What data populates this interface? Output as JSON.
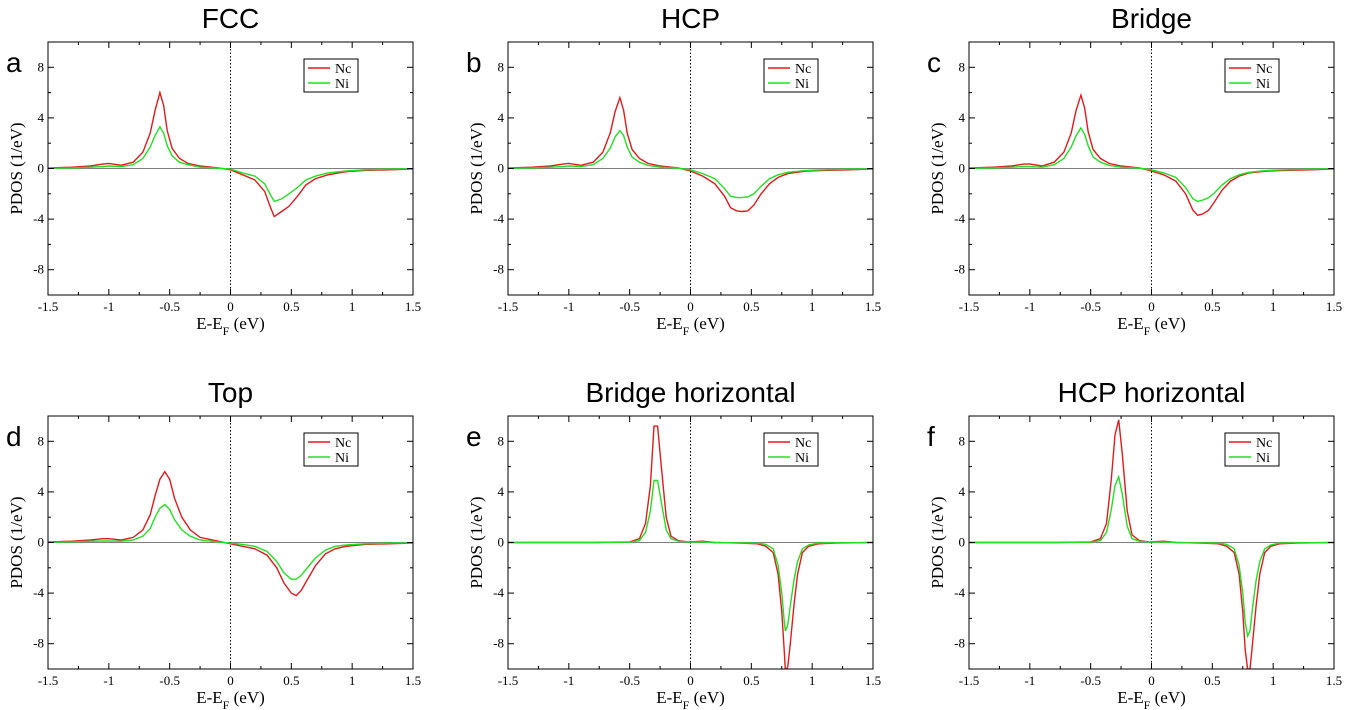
{
  "chart_data": [
    {
      "panel": "a",
      "type": "line",
      "title": "FCC",
      "xlabel": "E-E_F (eV)",
      "ylabel": "PDOS (1/eV)",
      "xlim": [
        -1.5,
        1.5
      ],
      "ylim": [
        -10,
        10
      ],
      "xticks": [
        "-1.5",
        "-1",
        "-0.5",
        "0",
        "0.5",
        "1",
        "1.5"
      ],
      "yticks": [
        "-8",
        "-4",
        "0",
        "4",
        "8"
      ],
      "legend": [
        "Nc",
        "Ni"
      ],
      "legend_position": "top-right",
      "series": [
        {
          "name": "Nc",
          "color": "#e31a1c",
          "x": [
            -1.5,
            -1.3,
            -1.15,
            -1.05,
            -1.0,
            -0.9,
            -0.8,
            -0.72,
            -0.66,
            -0.62,
            -0.58,
            -0.55,
            -0.52,
            -0.48,
            -0.42,
            -0.35,
            -0.25,
            -0.1,
            0.0,
            0.05,
            0.1,
            0.2,
            0.28,
            0.33,
            0.36,
            0.42,
            0.48,
            0.55,
            0.62,
            0.7,
            0.8,
            0.95,
            1.1,
            1.3,
            1.5
          ],
          "y": [
            0.05,
            0.1,
            0.2,
            0.35,
            0.4,
            0.25,
            0.5,
            1.3,
            2.8,
            4.6,
            6.0,
            5.0,
            3.0,
            1.6,
            0.8,
            0.4,
            0.2,
            0.05,
            -0.1,
            -0.3,
            -0.5,
            -0.9,
            -1.8,
            -3.1,
            -3.8,
            -3.4,
            -3.0,
            -2.2,
            -1.3,
            -0.8,
            -0.5,
            -0.25,
            -0.15,
            -0.1,
            -0.05
          ]
        },
        {
          "name": "Ni",
          "color": "#22e022",
          "x": [
            -1.5,
            -1.3,
            -1.15,
            -1.05,
            -1.0,
            -0.9,
            -0.8,
            -0.72,
            -0.66,
            -0.62,
            -0.58,
            -0.55,
            -0.52,
            -0.48,
            -0.42,
            -0.35,
            -0.25,
            -0.1,
            0.0,
            0.05,
            0.1,
            0.2,
            0.28,
            0.33,
            0.36,
            0.42,
            0.48,
            0.55,
            0.62,
            0.7,
            0.8,
            0.95,
            1.1,
            1.3,
            1.5
          ],
          "y": [
            0.02,
            0.05,
            0.1,
            0.15,
            0.2,
            0.15,
            0.3,
            0.8,
            1.7,
            2.6,
            3.3,
            2.8,
            1.8,
            1.0,
            0.5,
            0.3,
            0.1,
            0.02,
            -0.05,
            -0.2,
            -0.35,
            -0.6,
            -1.2,
            -2.1,
            -2.6,
            -2.4,
            -2.0,
            -1.5,
            -0.9,
            -0.6,
            -0.35,
            -0.2,
            -0.1,
            -0.05,
            -0.02
          ]
        }
      ]
    },
    {
      "panel": "b",
      "type": "line",
      "title": "HCP",
      "xlabel": "E-E_F (eV)",
      "ylabel": "PDOS (1/eV)",
      "xlim": [
        -1.5,
        1.5
      ],
      "ylim": [
        -10,
        10
      ],
      "xticks": [
        "-1.5",
        "-1",
        "-0.5",
        "0",
        "0.5",
        "1",
        "1.5"
      ],
      "yticks": [
        "-8",
        "-4",
        "0",
        "4",
        "8"
      ],
      "legend": [
        "Nc",
        "Ni"
      ],
      "legend_position": "top-right",
      "series": [
        {
          "name": "Nc",
          "color": "#e31a1c",
          "x": [
            -1.5,
            -1.3,
            -1.15,
            -1.05,
            -1.0,
            -0.9,
            -0.8,
            -0.72,
            -0.66,
            -0.62,
            -0.58,
            -0.55,
            -0.52,
            -0.48,
            -0.42,
            -0.35,
            -0.25,
            -0.1,
            0.0,
            0.1,
            0.2,
            0.28,
            0.33,
            0.38,
            0.42,
            0.47,
            0.52,
            0.58,
            0.65,
            0.72,
            0.8,
            0.95,
            1.1,
            1.3,
            1.5
          ],
          "y": [
            0.05,
            0.1,
            0.2,
            0.35,
            0.4,
            0.25,
            0.5,
            1.3,
            2.8,
            4.5,
            5.6,
            4.6,
            2.8,
            1.5,
            0.8,
            0.4,
            0.2,
            0.05,
            -0.2,
            -0.6,
            -1.2,
            -2.2,
            -3.1,
            -3.35,
            -3.4,
            -3.35,
            -2.9,
            -2.0,
            -1.2,
            -0.7,
            -0.4,
            -0.2,
            -0.15,
            -0.1,
            -0.05
          ]
        },
        {
          "name": "Ni",
          "color": "#22e022",
          "x": [
            -1.5,
            -1.3,
            -1.15,
            -1.05,
            -1.0,
            -0.9,
            -0.8,
            -0.72,
            -0.66,
            -0.62,
            -0.58,
            -0.55,
            -0.52,
            -0.48,
            -0.42,
            -0.35,
            -0.25,
            -0.1,
            0.0,
            0.1,
            0.2,
            0.28,
            0.33,
            0.38,
            0.42,
            0.47,
            0.52,
            0.58,
            0.65,
            0.72,
            0.8,
            0.95,
            1.1,
            1.3,
            1.5
          ],
          "y": [
            0.02,
            0.05,
            0.1,
            0.15,
            0.2,
            0.15,
            0.3,
            0.8,
            1.6,
            2.5,
            3.0,
            2.6,
            1.7,
            0.9,
            0.5,
            0.25,
            0.1,
            0.02,
            -0.1,
            -0.4,
            -0.8,
            -1.6,
            -2.2,
            -2.3,
            -2.3,
            -2.25,
            -2.0,
            -1.4,
            -0.8,
            -0.5,
            -0.3,
            -0.15,
            -0.1,
            -0.05,
            -0.02
          ]
        }
      ]
    },
    {
      "panel": "c",
      "type": "line",
      "title": "Bridge",
      "xlabel": "E-E_F (eV)",
      "ylabel": "PDOS (1/eV)",
      "xlim": [
        -1.5,
        1.5
      ],
      "ylim": [
        -10,
        10
      ],
      "xticks": [
        "-1.5",
        "-1",
        "-0.5",
        "0",
        "0.5",
        "1",
        "1.5"
      ],
      "yticks": [
        "-8",
        "-4",
        "0",
        "4",
        "8"
      ],
      "legend": [
        "Nc",
        "Ni"
      ],
      "legend_position": "top-right",
      "series": [
        {
          "name": "Nc",
          "color": "#e31a1c",
          "x": [
            -1.5,
            -1.3,
            -1.15,
            -1.05,
            -1.0,
            -0.9,
            -0.8,
            -0.72,
            -0.66,
            -0.62,
            -0.58,
            -0.55,
            -0.52,
            -0.48,
            -0.42,
            -0.35,
            -0.25,
            -0.1,
            0.0,
            0.1,
            0.2,
            0.28,
            0.34,
            0.38,
            0.42,
            0.47,
            0.52,
            0.58,
            0.65,
            0.72,
            0.8,
            0.95,
            1.1,
            1.3,
            1.5
          ],
          "y": [
            0.05,
            0.1,
            0.2,
            0.35,
            0.35,
            0.2,
            0.5,
            1.3,
            2.8,
            4.6,
            5.8,
            4.8,
            2.9,
            1.5,
            0.8,
            0.4,
            0.2,
            0.05,
            -0.2,
            -0.5,
            -1.0,
            -2.0,
            -3.3,
            -3.7,
            -3.6,
            -3.3,
            -2.6,
            -1.7,
            -1.0,
            -0.6,
            -0.35,
            -0.2,
            -0.15,
            -0.1,
            -0.05
          ]
        },
        {
          "name": "Ni",
          "color": "#22e022",
          "x": [
            -1.5,
            -1.3,
            -1.15,
            -1.05,
            -1.0,
            -0.9,
            -0.8,
            -0.72,
            -0.66,
            -0.62,
            -0.58,
            -0.55,
            -0.52,
            -0.48,
            -0.42,
            -0.35,
            -0.25,
            -0.1,
            0.0,
            0.1,
            0.2,
            0.28,
            0.34,
            0.38,
            0.42,
            0.47,
            0.52,
            0.58,
            0.65,
            0.72,
            0.8,
            0.95,
            1.1,
            1.3,
            1.5
          ],
          "y": [
            0.02,
            0.05,
            0.1,
            0.15,
            0.15,
            0.1,
            0.3,
            0.8,
            1.7,
            2.6,
            3.2,
            2.7,
            1.8,
            0.9,
            0.5,
            0.25,
            0.1,
            0.02,
            -0.1,
            -0.35,
            -0.7,
            -1.5,
            -2.4,
            -2.6,
            -2.5,
            -2.3,
            -1.9,
            -1.3,
            -0.8,
            -0.5,
            -0.3,
            -0.15,
            -0.1,
            -0.05,
            -0.02
          ]
        }
      ]
    },
    {
      "panel": "d",
      "type": "line",
      "title": "Top",
      "xlabel": "E-E_F (eV)",
      "ylabel": "PDOS (1/eV)",
      "xlim": [
        -1.5,
        1.5
      ],
      "ylim": [
        -10,
        10
      ],
      "xticks": [
        "-1.5",
        "-1",
        "-0.5",
        "0",
        "0.5",
        "1",
        "1.5"
      ],
      "yticks": [
        "-8",
        "-4",
        "0",
        "4",
        "8"
      ],
      "legend": [
        "Nc",
        "Ni"
      ],
      "legend_position": "top-right",
      "series": [
        {
          "name": "Nc",
          "color": "#e31a1c",
          "x": [
            -1.5,
            -1.3,
            -1.15,
            -1.05,
            -1.0,
            -0.9,
            -0.8,
            -0.72,
            -0.66,
            -0.62,
            -0.58,
            -0.54,
            -0.5,
            -0.46,
            -0.4,
            -0.33,
            -0.25,
            -0.1,
            0.0,
            0.1,
            0.2,
            0.3,
            0.38,
            0.44,
            0.5,
            0.54,
            0.58,
            0.64,
            0.7,
            0.78,
            0.86,
            0.95,
            1.1,
            1.3,
            1.5
          ],
          "y": [
            0.05,
            0.1,
            0.2,
            0.3,
            0.3,
            0.2,
            0.4,
            1.0,
            2.2,
            3.7,
            5.0,
            5.6,
            5.0,
            3.5,
            2.0,
            1.0,
            0.4,
            0.1,
            -0.1,
            -0.3,
            -0.5,
            -1.0,
            -2.0,
            -3.2,
            -4.0,
            -4.2,
            -3.8,
            -2.8,
            -1.8,
            -0.9,
            -0.5,
            -0.3,
            -0.15,
            -0.1,
            -0.05
          ]
        },
        {
          "name": "Ni",
          "color": "#22e022",
          "x": [
            -1.5,
            -1.3,
            -1.15,
            -1.05,
            -1.0,
            -0.9,
            -0.8,
            -0.72,
            -0.66,
            -0.62,
            -0.58,
            -0.54,
            -0.5,
            -0.46,
            -0.4,
            -0.33,
            -0.25,
            -0.1,
            0.0,
            0.1,
            0.2,
            0.3,
            0.38,
            0.44,
            0.5,
            0.54,
            0.58,
            0.64,
            0.7,
            0.78,
            0.86,
            0.95,
            1.1,
            1.3,
            1.5
          ],
          "y": [
            0.02,
            0.05,
            0.1,
            0.12,
            0.12,
            0.1,
            0.2,
            0.5,
            1.1,
            2.0,
            2.7,
            3.0,
            2.6,
            1.8,
            1.0,
            0.5,
            0.2,
            0.05,
            -0.05,
            -0.15,
            -0.3,
            -0.7,
            -1.5,
            -2.4,
            -2.9,
            -2.9,
            -2.6,
            -1.9,
            -1.2,
            -0.6,
            -0.3,
            -0.2,
            -0.1,
            -0.05,
            -0.02
          ]
        }
      ]
    },
    {
      "panel": "e",
      "type": "line",
      "title": "Bridge horizontal",
      "xlabel": "E-E_F (eV)",
      "ylabel": "PDOS (1/eV)",
      "xlim": [
        -1.5,
        1.5
      ],
      "ylim": [
        -10,
        10
      ],
      "xticks": [
        "-1.5",
        "-1",
        "-0.5",
        "0",
        "0.5",
        "1",
        "1.5"
      ],
      "yticks": [
        "-8",
        "-4",
        "0",
        "4",
        "8"
      ],
      "legend": [
        "Nc",
        "Ni"
      ],
      "legend_position": "top-right",
      "series": [
        {
          "name": "Nc",
          "color": "#e31a1c",
          "x": [
            -1.5,
            -0.8,
            -0.5,
            -0.42,
            -0.37,
            -0.33,
            -0.3,
            -0.27,
            -0.24,
            -0.2,
            -0.16,
            -0.1,
            -0.02,
            0.1,
            0.2,
            0.4,
            0.55,
            0.62,
            0.68,
            0.72,
            0.75,
            0.77,
            0.78,
            0.8,
            0.82,
            0.85,
            0.88,
            0.92,
            0.97,
            1.05,
            1.2,
            1.5
          ],
          "y": [
            0.0,
            0.0,
            0.05,
            0.3,
            1.5,
            4.5,
            9.2,
            9.2,
            6.0,
            2.0,
            0.5,
            0.15,
            0.05,
            0.1,
            0.0,
            -0.05,
            -0.1,
            -0.3,
            -0.8,
            -2.5,
            -5.5,
            -8.5,
            -10.2,
            -9.8,
            -8.0,
            -5.0,
            -2.5,
            -0.8,
            -0.3,
            -0.1,
            -0.05,
            0.0
          ]
        },
        {
          "name": "Ni",
          "color": "#22e022",
          "x": [
            -1.5,
            -0.8,
            -0.5,
            -0.42,
            -0.37,
            -0.33,
            -0.3,
            -0.27,
            -0.24,
            -0.2,
            -0.16,
            -0.1,
            -0.02,
            0.1,
            0.2,
            0.4,
            0.55,
            0.62,
            0.68,
            0.72,
            0.75,
            0.77,
            0.78,
            0.8,
            0.82,
            0.85,
            0.88,
            0.92,
            0.97,
            1.05,
            1.2,
            1.5
          ],
          "y": [
            0.0,
            0.0,
            0.02,
            0.15,
            0.8,
            2.5,
            4.9,
            4.9,
            3.2,
            1.0,
            0.3,
            0.1,
            0.03,
            0.05,
            0.0,
            -0.03,
            -0.05,
            -0.15,
            -0.5,
            -1.8,
            -4.0,
            -6.2,
            -7.0,
            -6.5,
            -5.0,
            -3.0,
            -1.5,
            -0.5,
            -0.2,
            -0.05,
            -0.02,
            0.0
          ]
        }
      ]
    },
    {
      "panel": "f",
      "type": "line",
      "title": "HCP horizontal",
      "xlabel": "E-E_F (eV)",
      "ylabel": "PDOS (1/eV)",
      "xlim": [
        -1.5,
        1.5
      ],
      "ylim": [
        -10,
        10
      ],
      "xticks": [
        "-1.5",
        "-1",
        "-0.5",
        "0",
        "0.5",
        "1",
        "1.5"
      ],
      "yticks": [
        "-8",
        "-4",
        "0",
        "4",
        "8"
      ],
      "legend": [
        "Nc",
        "Ni"
      ],
      "legend_position": "top-right",
      "series": [
        {
          "name": "Nc",
          "color": "#e31a1c",
          "x": [
            -1.5,
            -0.8,
            -0.5,
            -0.42,
            -0.37,
            -0.33,
            -0.3,
            -0.27,
            -0.24,
            -0.2,
            -0.16,
            -0.1,
            -0.02,
            0.1,
            0.2,
            0.4,
            0.55,
            0.62,
            0.68,
            0.72,
            0.75,
            0.77,
            0.79,
            0.81,
            0.83,
            0.86,
            0.89,
            0.93,
            0.98,
            1.05,
            1.2,
            1.5
          ],
          "y": [
            0.0,
            0.0,
            0.05,
            0.3,
            1.5,
            5.0,
            8.5,
            9.7,
            7.0,
            2.5,
            0.6,
            0.15,
            0.05,
            0.1,
            0.0,
            -0.05,
            -0.1,
            -0.3,
            -0.8,
            -2.5,
            -5.5,
            -8.5,
            -10.0,
            -10.0,
            -8.0,
            -5.0,
            -2.5,
            -0.8,
            -0.3,
            -0.1,
            -0.05,
            0.0
          ]
        },
        {
          "name": "Ni",
          "color": "#22e022",
          "x": [
            -1.5,
            -0.8,
            -0.5,
            -0.42,
            -0.37,
            -0.33,
            -0.3,
            -0.27,
            -0.24,
            -0.2,
            -0.16,
            -0.1,
            -0.02,
            0.1,
            0.2,
            0.4,
            0.55,
            0.62,
            0.68,
            0.72,
            0.75,
            0.77,
            0.79,
            0.81,
            0.83,
            0.86,
            0.89,
            0.93,
            0.98,
            1.05,
            1.2,
            1.5
          ],
          "y": [
            0.0,
            0.0,
            0.02,
            0.15,
            0.8,
            2.6,
            4.5,
            5.2,
            3.8,
            1.3,
            0.3,
            0.1,
            0.03,
            0.05,
            0.0,
            -0.03,
            -0.05,
            -0.15,
            -0.5,
            -1.8,
            -4.0,
            -6.3,
            -7.4,
            -7.0,
            -5.2,
            -3.0,
            -1.5,
            -0.5,
            -0.2,
            -0.05,
            -0.02,
            0.0
          ]
        }
      ]
    }
  ]
}
